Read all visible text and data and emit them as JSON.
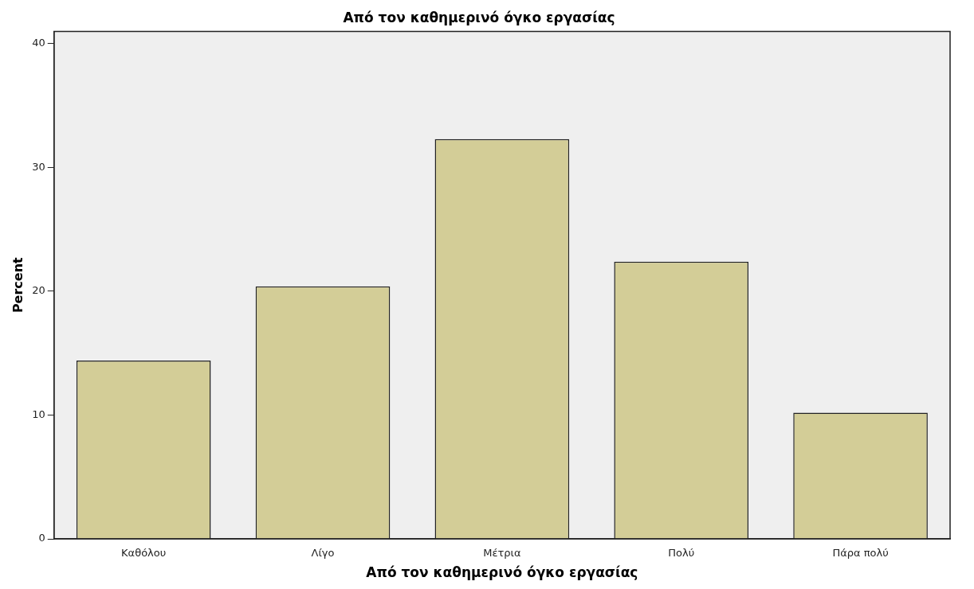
{
  "chart_data": {
    "type": "bar",
    "title": "Από τον καθημερινό όγκο εργασίας",
    "xlabel": "Από τον καθημερινό όγκο εργασίας",
    "ylabel": "Percent",
    "categories": [
      "Καθόλου",
      "Λίγο",
      "Μέτρια",
      "Πολύ",
      "Πάρα πολύ"
    ],
    "values": [
      14.4,
      20.4,
      32.3,
      22.4,
      10.2
    ],
    "color": "#d3cd97",
    "ylim": [
      0,
      41
    ],
    "yticks": [
      0,
      10,
      20,
      30,
      40
    ],
    "grid": false,
    "legend": false
  }
}
